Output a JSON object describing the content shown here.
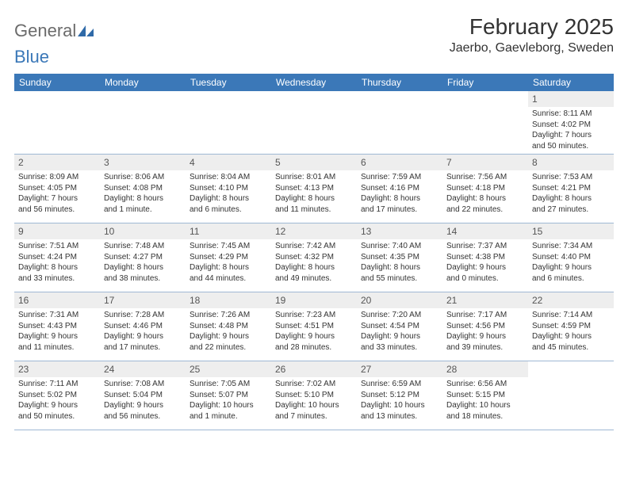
{
  "logo": {
    "text_main": "General",
    "text_blue": "Blue",
    "icon_color": "#2f6aa8"
  },
  "title": "February 2025",
  "location": "Jaerbo, Gaevleborg, Sweden",
  "colors": {
    "header_bg": "#3b78b8",
    "header_text": "#ffffff",
    "daynum_bg": "#eeeeee",
    "border": "#9fb8d4"
  },
  "day_headers": [
    "Sunday",
    "Monday",
    "Tuesday",
    "Wednesday",
    "Thursday",
    "Friday",
    "Saturday"
  ],
  "weeks": [
    [
      {},
      {},
      {},
      {},
      {},
      {},
      {
        "n": "1",
        "sunrise": "Sunrise: 8:11 AM",
        "sunset": "Sunset: 4:02 PM",
        "daylight1": "Daylight: 7 hours",
        "daylight2": "and 50 minutes."
      }
    ],
    [
      {
        "n": "2",
        "sunrise": "Sunrise: 8:09 AM",
        "sunset": "Sunset: 4:05 PM",
        "daylight1": "Daylight: 7 hours",
        "daylight2": "and 56 minutes."
      },
      {
        "n": "3",
        "sunrise": "Sunrise: 8:06 AM",
        "sunset": "Sunset: 4:08 PM",
        "daylight1": "Daylight: 8 hours",
        "daylight2": "and 1 minute."
      },
      {
        "n": "4",
        "sunrise": "Sunrise: 8:04 AM",
        "sunset": "Sunset: 4:10 PM",
        "daylight1": "Daylight: 8 hours",
        "daylight2": "and 6 minutes."
      },
      {
        "n": "5",
        "sunrise": "Sunrise: 8:01 AM",
        "sunset": "Sunset: 4:13 PM",
        "daylight1": "Daylight: 8 hours",
        "daylight2": "and 11 minutes."
      },
      {
        "n": "6",
        "sunrise": "Sunrise: 7:59 AM",
        "sunset": "Sunset: 4:16 PM",
        "daylight1": "Daylight: 8 hours",
        "daylight2": "and 17 minutes."
      },
      {
        "n": "7",
        "sunrise": "Sunrise: 7:56 AM",
        "sunset": "Sunset: 4:18 PM",
        "daylight1": "Daylight: 8 hours",
        "daylight2": "and 22 minutes."
      },
      {
        "n": "8",
        "sunrise": "Sunrise: 7:53 AM",
        "sunset": "Sunset: 4:21 PM",
        "daylight1": "Daylight: 8 hours",
        "daylight2": "and 27 minutes."
      }
    ],
    [
      {
        "n": "9",
        "sunrise": "Sunrise: 7:51 AM",
        "sunset": "Sunset: 4:24 PM",
        "daylight1": "Daylight: 8 hours",
        "daylight2": "and 33 minutes."
      },
      {
        "n": "10",
        "sunrise": "Sunrise: 7:48 AM",
        "sunset": "Sunset: 4:27 PM",
        "daylight1": "Daylight: 8 hours",
        "daylight2": "and 38 minutes."
      },
      {
        "n": "11",
        "sunrise": "Sunrise: 7:45 AM",
        "sunset": "Sunset: 4:29 PM",
        "daylight1": "Daylight: 8 hours",
        "daylight2": "and 44 minutes."
      },
      {
        "n": "12",
        "sunrise": "Sunrise: 7:42 AM",
        "sunset": "Sunset: 4:32 PM",
        "daylight1": "Daylight: 8 hours",
        "daylight2": "and 49 minutes."
      },
      {
        "n": "13",
        "sunrise": "Sunrise: 7:40 AM",
        "sunset": "Sunset: 4:35 PM",
        "daylight1": "Daylight: 8 hours",
        "daylight2": "and 55 minutes."
      },
      {
        "n": "14",
        "sunrise": "Sunrise: 7:37 AM",
        "sunset": "Sunset: 4:38 PM",
        "daylight1": "Daylight: 9 hours",
        "daylight2": "and 0 minutes."
      },
      {
        "n": "15",
        "sunrise": "Sunrise: 7:34 AM",
        "sunset": "Sunset: 4:40 PM",
        "daylight1": "Daylight: 9 hours",
        "daylight2": "and 6 minutes."
      }
    ],
    [
      {
        "n": "16",
        "sunrise": "Sunrise: 7:31 AM",
        "sunset": "Sunset: 4:43 PM",
        "daylight1": "Daylight: 9 hours",
        "daylight2": "and 11 minutes."
      },
      {
        "n": "17",
        "sunrise": "Sunrise: 7:28 AM",
        "sunset": "Sunset: 4:46 PM",
        "daylight1": "Daylight: 9 hours",
        "daylight2": "and 17 minutes."
      },
      {
        "n": "18",
        "sunrise": "Sunrise: 7:26 AM",
        "sunset": "Sunset: 4:48 PM",
        "daylight1": "Daylight: 9 hours",
        "daylight2": "and 22 minutes."
      },
      {
        "n": "19",
        "sunrise": "Sunrise: 7:23 AM",
        "sunset": "Sunset: 4:51 PM",
        "daylight1": "Daylight: 9 hours",
        "daylight2": "and 28 minutes."
      },
      {
        "n": "20",
        "sunrise": "Sunrise: 7:20 AM",
        "sunset": "Sunset: 4:54 PM",
        "daylight1": "Daylight: 9 hours",
        "daylight2": "and 33 minutes."
      },
      {
        "n": "21",
        "sunrise": "Sunrise: 7:17 AM",
        "sunset": "Sunset: 4:56 PM",
        "daylight1": "Daylight: 9 hours",
        "daylight2": "and 39 minutes."
      },
      {
        "n": "22",
        "sunrise": "Sunrise: 7:14 AM",
        "sunset": "Sunset: 4:59 PM",
        "daylight1": "Daylight: 9 hours",
        "daylight2": "and 45 minutes."
      }
    ],
    [
      {
        "n": "23",
        "sunrise": "Sunrise: 7:11 AM",
        "sunset": "Sunset: 5:02 PM",
        "daylight1": "Daylight: 9 hours",
        "daylight2": "and 50 minutes."
      },
      {
        "n": "24",
        "sunrise": "Sunrise: 7:08 AM",
        "sunset": "Sunset: 5:04 PM",
        "daylight1": "Daylight: 9 hours",
        "daylight2": "and 56 minutes."
      },
      {
        "n": "25",
        "sunrise": "Sunrise: 7:05 AM",
        "sunset": "Sunset: 5:07 PM",
        "daylight1": "Daylight: 10 hours",
        "daylight2": "and 1 minute."
      },
      {
        "n": "26",
        "sunrise": "Sunrise: 7:02 AM",
        "sunset": "Sunset: 5:10 PM",
        "daylight1": "Daylight: 10 hours",
        "daylight2": "and 7 minutes."
      },
      {
        "n": "27",
        "sunrise": "Sunrise: 6:59 AM",
        "sunset": "Sunset: 5:12 PM",
        "daylight1": "Daylight: 10 hours",
        "daylight2": "and 13 minutes."
      },
      {
        "n": "28",
        "sunrise": "Sunrise: 6:56 AM",
        "sunset": "Sunset: 5:15 PM",
        "daylight1": "Daylight: 10 hours",
        "daylight2": "and 18 minutes."
      },
      {}
    ]
  ]
}
